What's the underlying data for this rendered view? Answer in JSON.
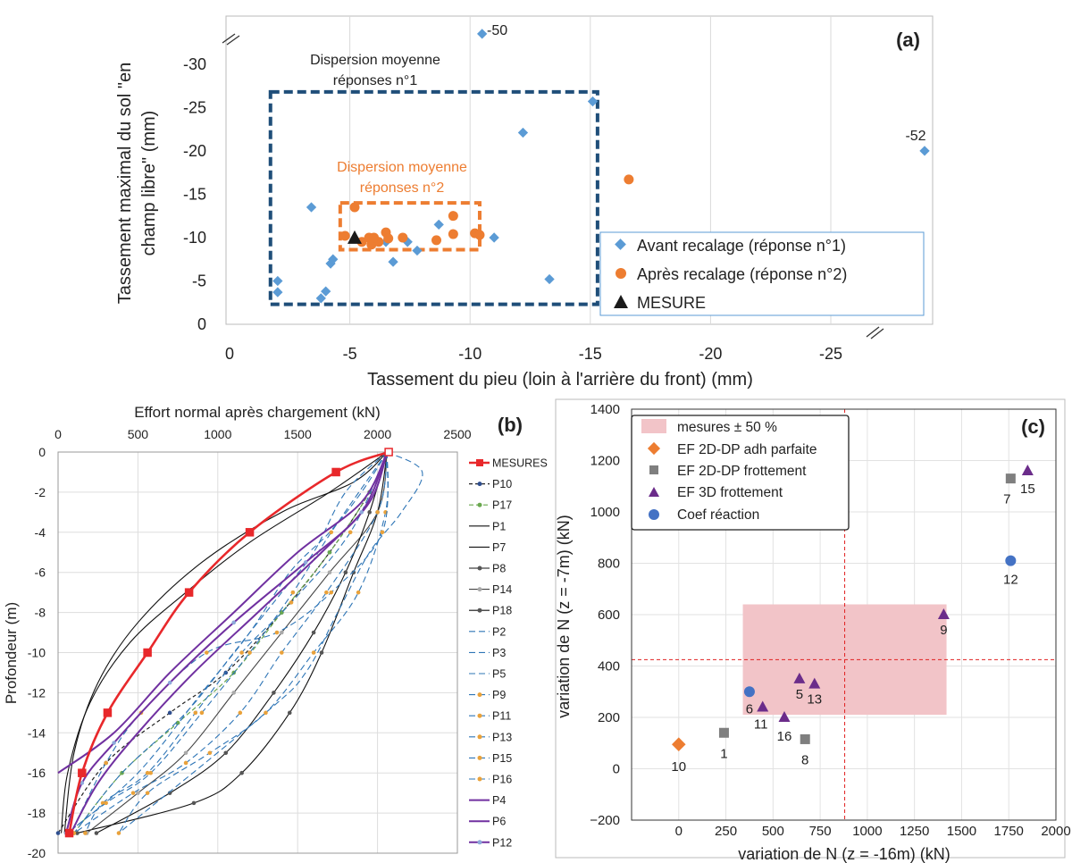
{
  "colors": {
    "avant": "#5B9BD5",
    "apres": "#ED7D31",
    "mesure": "#1A1A1A",
    "box1": "#1F4E79",
    "box2": "#ED7D31",
    "mesures_red": "#E8282B",
    "band": "#F2C4C8",
    "grey": "#7F7F7F",
    "purple": "#6B2C8A",
    "coef": "#4472C4",
    "dashblue": "#2E75B6",
    "violet": "#7030A0",
    "refline": "#E02020"
  },
  "chart_data": [
    {
      "id": "a",
      "type": "scatter",
      "panel_label": "(a)",
      "xlabel": "Tassement du pieu (loin à l'arrière du front) (mm)",
      "ylabel_line1": "Tassement maximal du sol \"en",
      "ylabel_line2": "champ libre\" (mm)",
      "xlim": [
        0,
        -28.9
      ],
      "ylim": [
        0,
        -34
      ],
      "x_ticks": [
        0,
        -5,
        -10,
        -15,
        -20,
        -25
      ],
      "y_ticks": [
        0,
        -5,
        -10,
        -15,
        -20,
        -25,
        -30
      ],
      "x_tick_labels": [
        "0",
        "-5",
        "-10",
        "-15",
        "-20",
        "-25"
      ],
      "y_tick_labels": [
        "0",
        "-5",
        "-10",
        "-15",
        "-20",
        "-25",
        "-30"
      ],
      "legend": {
        "avant": "Avant recalage (réponse n°1)",
        "apres": "Après recalage (réponse n°2)",
        "mesure": "MESURE"
      },
      "annotations": {
        "box1_line1": "Dispersion moyenne",
        "box1_line2": "réponses n°1",
        "box2_line1": "Dispersion moyenne",
        "box2_line2": "réponses n°2",
        "outlier_top": "-50",
        "outlier_right": "-52"
      },
      "box1": {
        "x": [
          -1.7,
          -15.3
        ],
        "y": [
          -2.3,
          -26.8
        ]
      },
      "box2": {
        "x": [
          -4.6,
          -10.4
        ],
        "y": [
          -8.6,
          -14.0
        ]
      },
      "series_avant": [
        [
          -2.0,
          -5.0
        ],
        [
          -2.0,
          -3.7
        ],
        [
          -3.4,
          -13.5
        ],
        [
          -3.8,
          -3.0
        ],
        [
          -4.0,
          -3.8
        ],
        [
          -4.2,
          -7.0
        ],
        [
          -4.3,
          -7.5
        ],
        [
          -6.5,
          -9.5
        ],
        [
          -6.8,
          -7.2
        ],
        [
          -7.4,
          -9.5
        ],
        [
          -7.8,
          -8.5
        ],
        [
          -8.7,
          -11.5
        ],
        [
          -11.0,
          -10.0
        ],
        [
          -12.2,
          -22.1
        ],
        [
          -13.3,
          -5.2
        ],
        [
          -15.1,
          -25.7
        ],
        [
          -10.5,
          -33.5
        ],
        [
          -28.9,
          -20.0
        ]
      ],
      "series_apres": [
        [
          -4.8,
          -10.2
        ],
        [
          -5.2,
          -13.5
        ],
        [
          -5.5,
          -9.5
        ],
        [
          -5.8,
          -10.0
        ],
        [
          -5.9,
          -9.2
        ],
        [
          -6.2,
          -9.5
        ],
        [
          -6.5,
          -10.6
        ],
        [
          -6.6,
          -9.9
        ],
        [
          -7.2,
          -10.0
        ],
        [
          -8.6,
          -9.7
        ],
        [
          -9.3,
          -12.5
        ],
        [
          -9.3,
          -10.4
        ],
        [
          -10.2,
          -10.5
        ],
        [
          -10.4,
          -10.3
        ],
        [
          -16.6,
          -16.7
        ],
        [
          -6.0,
          -10.0
        ]
      ],
      "series_mesure": [
        [
          -5.2,
          -9.9
        ]
      ]
    },
    {
      "id": "b",
      "type": "line",
      "panel_label": "(b)",
      "xlabel": "Effort normal après chargement (kN)",
      "ylabel": "Profondeur (m)",
      "xlim": [
        0,
        2500
      ],
      "ylim": [
        0,
        -20
      ],
      "x_ticks": [
        0,
        500,
        1000,
        1500,
        2000,
        2500
      ],
      "y_ticks": [
        0,
        -2,
        -4,
        -6,
        -8,
        -10,
        -12,
        -14,
        -16,
        -18,
        -20
      ],
      "x_tick_labels": [
        "0",
        "500",
        "1000",
        "1500",
        "2000",
        "2500"
      ],
      "y_tick_labels": [
        "0",
        "-2",
        "-4",
        "-6",
        "-8",
        "-10",
        "-12",
        "-14",
        "-16",
        "-18",
        "-20"
      ],
      "series": [
        {
          "name": "MESURES",
          "style": "mesures",
          "points": [
            [
              2070,
              0
            ],
            [
              1740,
              -1
            ],
            [
              1200,
              -4
            ],
            [
              820,
              -7
            ],
            [
              560,
              -10
            ],
            [
              310,
              -13
            ],
            [
              150,
              -16
            ],
            [
              70,
              -19
            ]
          ]
        },
        {
          "name": "P10",
          "style": "dot_dark",
          "points": [
            [
              2060,
              0
            ],
            [
              1950,
              -2
            ],
            [
              1700,
              -5
            ],
            [
              1400,
              -8
            ],
            [
              1050,
              -11
            ],
            [
              700,
              -13
            ],
            [
              300,
              -15.5
            ],
            [
              0,
              -19
            ]
          ]
        },
        {
          "name": "P17",
          "style": "dash_green",
          "points": [
            [
              2060,
              0
            ],
            [
              1950,
              -2
            ],
            [
              1700,
              -5
            ],
            [
              1400,
              -8
            ],
            [
              1100,
              -11
            ],
            [
              750,
              -13.5
            ],
            [
              400,
              -16
            ],
            [
              100,
              -19
            ]
          ]
        },
        {
          "name": "P1",
          "style": "black",
          "points": [
            [
              2060,
              0
            ],
            [
              1850,
              -1.5
            ],
            [
              1400,
              -3
            ],
            [
              900,
              -5.5
            ],
            [
              500,
              -8.5
            ],
            [
              250,
              -11.5
            ],
            [
              100,
              -15
            ],
            [
              40,
              -19
            ]
          ]
        },
        {
          "name": "P7",
          "style": "black",
          "points": [
            [
              2060,
              0
            ],
            [
              1700,
              -2
            ],
            [
              1200,
              -4.5
            ],
            [
              800,
              -7
            ],
            [
              450,
              -9.5
            ],
            [
              200,
              -12.5
            ],
            [
              60,
              -16
            ],
            [
              20,
              -19
            ]
          ]
        },
        {
          "name": "P8",
          "style": "black_dot",
          "points": [
            [
              2060,
              0
            ],
            [
              2000,
              -3
            ],
            [
              1850,
              -6
            ],
            [
              1650,
              -10
            ],
            [
              1450,
              -13
            ],
            [
              1150,
              -16
            ],
            [
              850,
              -17.5
            ],
            [
              120,
              -19
            ]
          ]
        },
        {
          "name": "P14",
          "style": "grey_dot",
          "points": [
            [
              2060,
              0
            ],
            [
              2000,
              -3
            ],
            [
              1700,
              -6
            ],
            [
              1400,
              -9
            ],
            [
              1100,
              -12
            ],
            [
              800,
              -15
            ],
            [
              500,
              -17
            ],
            [
              180,
              -19
            ]
          ]
        },
        {
          "name": "P18",
          "style": "black_dot",
          "points": [
            [
              2060,
              0
            ],
            [
              1950,
              -3
            ],
            [
              1800,
              -6
            ],
            [
              1600,
              -9
            ],
            [
              1350,
              -12
            ],
            [
              1050,
              -15
            ],
            [
              700,
              -17
            ],
            [
              240,
              -19
            ]
          ]
        },
        {
          "name": "P2",
          "style": "dash_blue",
          "points": [
            [
              2060,
              0
            ],
            [
              1900,
              -2
            ],
            [
              1700,
              -4
            ],
            [
              1450,
              -6
            ],
            [
              1200,
              -9
            ],
            [
              900,
              -12
            ],
            [
              500,
              -16
            ],
            [
              60,
              -19
            ]
          ]
        },
        {
          "name": "P3",
          "style": "dash_blue",
          "points": [
            [
              2060,
              0
            ],
            [
              1800,
              -2
            ],
            [
              1600,
              -5
            ],
            [
              1400,
              -7
            ],
            [
              1100,
              -10
            ],
            [
              800,
              -13
            ],
            [
              400,
              -16
            ],
            [
              100,
              -19
            ]
          ]
        },
        {
          "name": "P5",
          "style": "dash_blue",
          "points": [
            [
              2060,
              0
            ],
            [
              2280,
              -1
            ],
            [
              2150,
              -3
            ],
            [
              1950,
              -5
            ],
            [
              1750,
              -8
            ],
            [
              1550,
              -11
            ],
            [
              1300,
              -13
            ],
            [
              380,
              -19
            ]
          ]
        },
        {
          "name": "P9",
          "style": "dash_blue_dot",
          "points": [
            [
              2060,
              0
            ],
            [
              2050,
              -3
            ],
            [
              1880,
              -7
            ],
            [
              1600,
              -10
            ],
            [
              1300,
              -13
            ],
            [
              950,
              -15
            ],
            [
              560,
              -17
            ],
            [
              380,
              -19
            ]
          ]
        },
        {
          "name": "P11",
          "style": "dash_blue_dot",
          "points": [
            [
              2060,
              0
            ],
            [
              2000,
              -3
            ],
            [
              1680,
              -7
            ],
            [
              1400,
              -10
            ],
            [
              1140,
              -13
            ],
            [
              800,
              -15.5
            ],
            [
              470,
              -17
            ],
            [
              100,
              -19
            ]
          ]
        },
        {
          "name": "P13",
          "style": "dash_blue_dot",
          "points": [
            [
              2060,
              0
            ],
            [
              1830,
              -4
            ],
            [
              1460,
              -7.5
            ],
            [
              1150,
              -10
            ],
            [
              860,
              -13
            ],
            [
              560,
              -16
            ],
            [
              280,
              -17.5
            ],
            [
              170,
              -19
            ]
          ]
        },
        {
          "name": "P15",
          "style": "dash_blue_dot",
          "points": [
            [
              2060,
              0
            ],
            [
              2030,
              -4
            ],
            [
              1710,
              -7
            ],
            [
              1370,
              -9
            ],
            [
              930,
              -10
            ],
            [
              520,
              -13
            ],
            [
              300,
              -15.5
            ],
            [
              80,
              -19
            ]
          ]
        },
        {
          "name": "P16",
          "style": "dash_blue_dot",
          "points": [
            [
              2060,
              0
            ],
            [
              1710,
              -4
            ],
            [
              1470,
              -7
            ],
            [
              1200,
              -10
            ],
            [
              900,
              -13
            ],
            [
              580,
              -16
            ],
            [
              300,
              -17.5
            ],
            [
              60,
              -19
            ]
          ]
        },
        {
          "name": "P4",
          "style": "violet",
          "points": [
            [
              2060,
              0
            ],
            [
              1900,
              -2.5
            ],
            [
              1500,
              -5
            ],
            [
              1100,
              -8
            ],
            [
              700,
              -11
            ],
            [
              350,
              -14
            ],
            [
              0,
              -16
            ]
          ]
        },
        {
          "name": "P6",
          "style": "violet",
          "points": [
            [
              2060,
              0
            ],
            [
              1950,
              -2.5
            ],
            [
              1650,
              -5
            ],
            [
              1250,
              -8
            ],
            [
              850,
              -11
            ],
            [
              500,
              -14
            ],
            [
              250,
              -16.5
            ],
            [
              80,
              -19
            ]
          ]
        },
        {
          "name": "P12",
          "style": "violet_dot",
          "points": [
            [
              2060,
              0
            ],
            [
              1900,
              -3
            ],
            [
              1550,
              -5.5
            ],
            [
              1100,
              -8.5
            ],
            [
              700,
              -11.5
            ],
            [
              350,
              -14.5
            ],
            [
              150,
              -16.5
            ],
            [
              50,
              -19
            ]
          ]
        }
      ]
    },
    {
      "id": "c",
      "type": "scatter",
      "panel_label": "(c)",
      "xlabel": "variation de N (z = -16m) (kN)",
      "ylabel": "variation de N (z = -7m) (kN)",
      "xlim": [
        -250,
        2000
      ],
      "ylim": [
        -200,
        1400
      ],
      "x_ticks": [
        0,
        250,
        500,
        750,
        1000,
        1250,
        1500,
        1750,
        2000
      ],
      "y_ticks": [
        -200,
        0,
        200,
        400,
        600,
        800,
        1000,
        1200,
        1400
      ],
      "x_tick_labels": [
        "0",
        "250",
        "500",
        "750",
        "1000",
        "1250",
        "1500",
        "1750",
        "2000"
      ],
      "y_tick_labels": [
        "−200",
        "0",
        "200",
        "400",
        "600",
        "800",
        "1000",
        "1200",
        "1400"
      ],
      "ref_x": 880,
      "ref_y": 425,
      "band": {
        "x": [
          340,
          1420
        ],
        "y": [
          210,
          640
        ]
      },
      "legend": {
        "band": "mesures ± 50 %",
        "adh": "EF 2D-DP adh parfaite",
        "frott2d": "EF 2D-DP frottement",
        "frott3d": "EF 3D frottement",
        "coef": "Coef réaction"
      },
      "points": [
        {
          "label": "10",
          "series": "adh",
          "x": 0,
          "y": 95
        },
        {
          "label": "1",
          "series": "frott2d",
          "x": 240,
          "y": 140
        },
        {
          "label": "8",
          "series": "frott2d",
          "x": 670,
          "y": 115
        },
        {
          "label": "7",
          "series": "frott2d",
          "x": 1760,
          "y": 1130
        },
        {
          "label": "11",
          "series": "frott3d",
          "x": 445,
          "y": 240
        },
        {
          "label": "16",
          "series": "frott3d",
          "x": 560,
          "y": 200
        },
        {
          "label": "5",
          "series": "frott3d",
          "x": 640,
          "y": 350
        },
        {
          "label": "13",
          "series": "frott3d",
          "x": 720,
          "y": 330
        },
        {
          "label": "9",
          "series": "frott3d",
          "x": 1405,
          "y": 600
        },
        {
          "label": "15",
          "series": "frott3d",
          "x": 1850,
          "y": 1160
        },
        {
          "label": "6",
          "series": "coef",
          "x": 375,
          "y": 300
        },
        {
          "label": "12",
          "series": "coef",
          "x": 1760,
          "y": 810
        }
      ]
    }
  ]
}
